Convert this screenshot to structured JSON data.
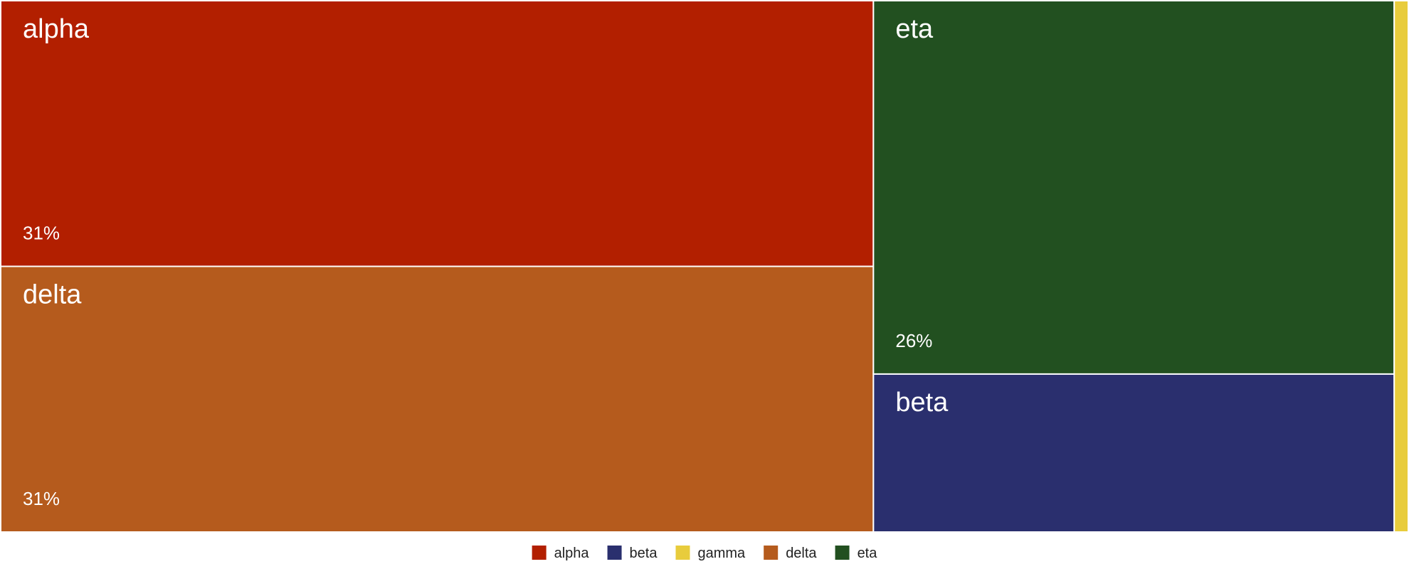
{
  "chart_data": {
    "type": "treemap",
    "categories": [
      "alpha",
      "beta",
      "gamma",
      "delta",
      "eta"
    ],
    "values": [
      31,
      11,
      1,
      31,
      26
    ],
    "value_labels": [
      "31%",
      "",
      "",
      "31%",
      "26%"
    ],
    "colors": {
      "alpha": "#b21f00",
      "beta": "#2a2f6e",
      "gamma": "#e8cc3c",
      "delta": "#b55b1d",
      "eta": "#225020"
    },
    "legend": {
      "placement": "bottom-center",
      "entries": [
        "alpha",
        "beta",
        "gamma",
        "delta",
        "eta"
      ]
    },
    "title": ""
  }
}
